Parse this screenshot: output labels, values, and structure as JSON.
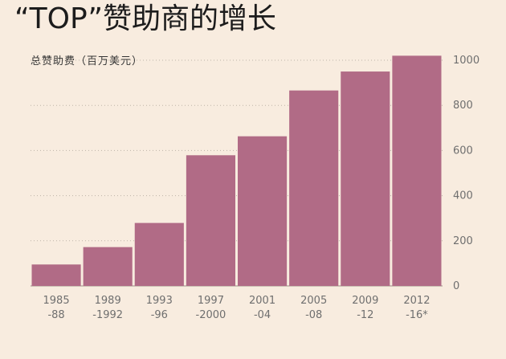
{
  "chart_data": {
    "type": "bar",
    "title": "“TOP”赞助商的增长",
    "ylabel": "总赞助费（百万美元）",
    "categories": [
      [
        "1985",
        "-88"
      ],
      [
        "1989",
        "-1992"
      ],
      [
        "1993",
        "-96"
      ],
      [
        "1997",
        "-2000"
      ],
      [
        "2001",
        "-04"
      ],
      [
        "2005",
        "-08"
      ],
      [
        "2009",
        "-12"
      ],
      [
        "2012",
        "-16*"
      ]
    ],
    "values": [
      95,
      172,
      279,
      579,
      663,
      866,
      950,
      1020
    ],
    "ylim": [
      0,
      1000
    ],
    "yticks": [
      "0",
      "200",
      "400",
      "600",
      "800",
      "1000"
    ],
    "grid": true,
    "bar_color": "#b16b86"
  }
}
